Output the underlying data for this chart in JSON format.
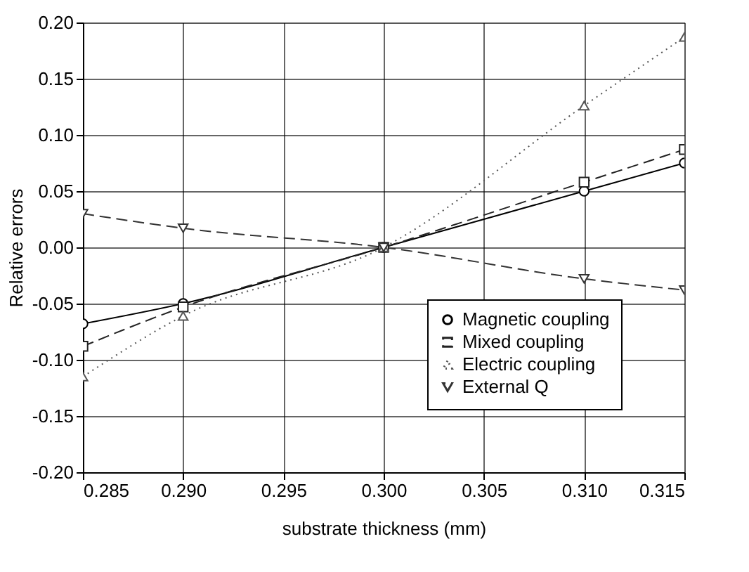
{
  "chart_data": {
    "type": "line",
    "xlabel": "substrate thickness (mm)",
    "ylabel": "Relative errors",
    "x": [
      0.285,
      0.29,
      0.3,
      0.31,
      0.315
    ],
    "series": [
      {
        "name": "Magnetic coupling",
        "color": "#000000",
        "marker": "circle",
        "line_style": "solid",
        "values": [
          -0.068,
          -0.05,
          0.0,
          0.05,
          0.075
        ]
      },
      {
        "name": "Mixed coupling",
        "color": "#222222",
        "marker": "square",
        "line_style": "dashed",
        "values": [
          -0.088,
          -0.053,
          0.0,
          0.058,
          0.087
        ]
      },
      {
        "name": "Electric coupling",
        "color": "#555555",
        "marker": "triangle",
        "line_style": "dotted",
        "values": [
          -0.115,
          -0.061,
          0.0,
          0.126,
          0.187
        ]
      },
      {
        "name": "External Q",
        "color": "#333333",
        "marker": "triangle-down",
        "line_style": "dashed",
        "values": [
          0.03,
          0.017,
          0.0,
          -0.028,
          -0.038
        ]
      }
    ],
    "xlim": [
      0.285,
      0.315
    ],
    "xticks": [
      {
        "value": 0.285,
        "label": "0.285"
      },
      {
        "value": 0.29,
        "label": "0.290"
      },
      {
        "value": 0.295,
        "label": "0.295"
      },
      {
        "value": 0.3,
        "label": "0.300"
      },
      {
        "value": 0.305,
        "label": "0.305"
      },
      {
        "value": 0.31,
        "label": "0.310"
      },
      {
        "value": 0.315,
        "label": "0.315"
      }
    ],
    "ylim": [
      -0.2,
      0.2
    ],
    "yticks": [
      {
        "value": -0.2,
        "label": "-0.20"
      },
      {
        "value": -0.15,
        "label": "-0.15"
      },
      {
        "value": -0.1,
        "label": "-0.10"
      },
      {
        "value": -0.05,
        "label": "-0.05"
      },
      {
        "value": 0,
        "label": "0.00"
      },
      {
        "value": 0.05,
        "label": "0.05"
      },
      {
        "value": 0.1,
        "label": "0.10"
      },
      {
        "value": 0.15,
        "label": "0.15"
      },
      {
        "value": 0.2,
        "label": "0.20"
      }
    ],
    "grid": true,
    "legend": "bottom right"
  }
}
